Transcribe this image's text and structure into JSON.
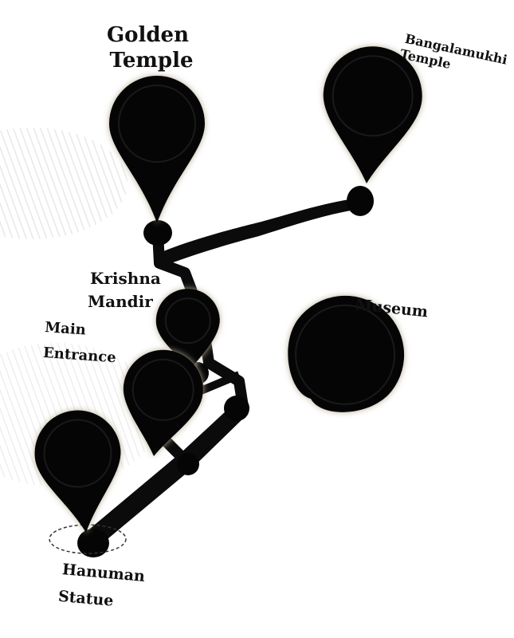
{
  "map": {
    "colors": {
      "background": "#ffffff",
      "route": "#0b0b0b",
      "pin": "#050505",
      "pin_glow": "#b9b098",
      "label": "#111111",
      "sky": "#c9d7e6",
      "roof": "#b8633c",
      "temple": "#6d3a22",
      "stone": "#d9b28a"
    },
    "places": [
      {
        "id": "golden-temple",
        "label_lines": [
          "Golden",
          "Temple"
        ]
      },
      {
        "id": "bangalamukhi-temple",
        "label_lines": [
          "Bangalamukhi",
          "Temple"
        ]
      },
      {
        "id": "krishna-mandir",
        "label_lines": [
          "Krishna",
          "Mandir"
        ]
      },
      {
        "id": "museum",
        "label_lines": [
          "Museum"
        ]
      },
      {
        "id": "main-entrance",
        "label_lines": [
          "Main",
          "Entrance"
        ]
      },
      {
        "id": "hanuman-statue",
        "label_lines": [
          "Hanuman",
          "Statue"
        ]
      }
    ]
  }
}
